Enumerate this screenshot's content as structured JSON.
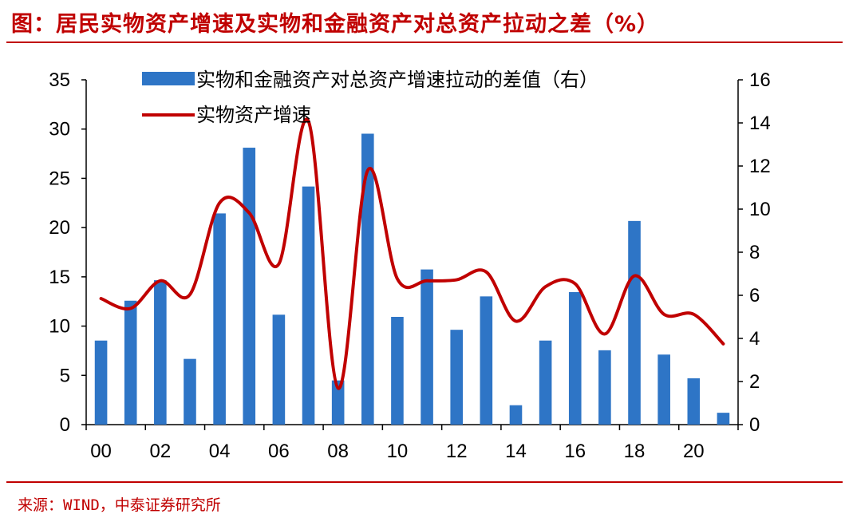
{
  "title": "图：居民实物资产增速及实物和金融资产对总资产拉动之差（%）",
  "source": "来源：WIND，中泰证券研究所",
  "chart_data": {
    "type": "bar+line",
    "categories": [
      "00",
      "01",
      "02",
      "03",
      "04",
      "05",
      "06",
      "07",
      "08",
      "09",
      "10",
      "11",
      "12",
      "13",
      "14",
      "15",
      "16",
      "17",
      "18",
      "19",
      "20",
      "21"
    ],
    "x_tick_labels": [
      "00",
      "02",
      "04",
      "06",
      "08",
      "10",
      "12",
      "14",
      "16",
      "18",
      "20"
    ],
    "series": [
      {
        "name": "实物和金融资产对总资产增速拉动的差值（右）",
        "type": "bar",
        "axis": "right",
        "color": "#2e75c6",
        "values": [
          3.9,
          5.75,
          6.7,
          3.05,
          9.8,
          12.85,
          5.1,
          11.05,
          2.05,
          13.5,
          5.0,
          7.2,
          4.4,
          5.95,
          0.9,
          3.9,
          6.15,
          3.45,
          9.45,
          3.25,
          2.15,
          0.55
        ]
      },
      {
        "name": "实物资产增速",
        "type": "line",
        "axis": "left",
        "color": "#c00000",
        "values": [
          12.8,
          11.8,
          14.6,
          13.2,
          22.5,
          21.5,
          16.3,
          30.8,
          3.7,
          25.8,
          14.8,
          14.6,
          14.7,
          15.5,
          10.5,
          14.0,
          14.3,
          9.2,
          15.1,
          11.2,
          11.2,
          8.2
        ]
      }
    ],
    "y_left": {
      "min": 0,
      "max": 35,
      "ticks": [
        0,
        5,
        10,
        15,
        20,
        25,
        30,
        35
      ]
    },
    "y_right": {
      "min": 0,
      "max": 16,
      "ticks": [
        0,
        2,
        4,
        6,
        8,
        10,
        12,
        14,
        16
      ]
    },
    "legend_position": "top-left"
  }
}
